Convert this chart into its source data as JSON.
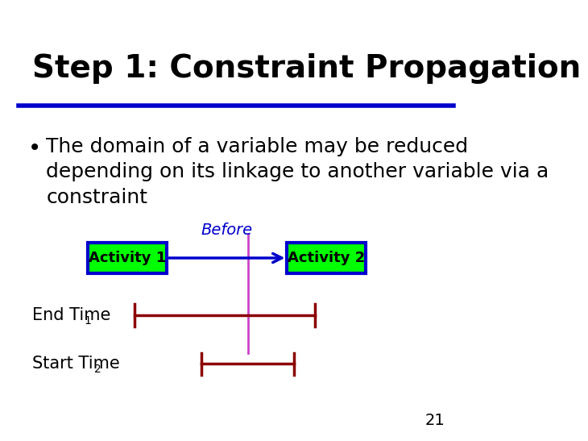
{
  "title": "Step 1: Constraint Propagation",
  "title_fontsize": 28,
  "title_color": "#000000",
  "background_color": "#ffffff",
  "blue_line_color": "#0000cc",
  "bullet_text": "The domain of a variable may be reduced\ndepending on its linkage to another variable via a\nconstraint",
  "bullet_fontsize": 18,
  "activity1_label": "Activity 1",
  "activity2_label": "Activity 2",
  "activity_fill": "#00ff00",
  "activity_border": "#0000cc",
  "activity_text_color": "#000000",
  "arrow_label": "Before",
  "arrow_color": "#0000cc",
  "arrow_label_color": "#0000cc",
  "end_time_label": "End Time",
  "end_time_subscript": "1",
  "start_time_label": "Start Time",
  "start_time_subscript": "2",
  "interval_color": "#8b0000",
  "vertical_line_color": "#cc44cc",
  "page_number": "21"
}
